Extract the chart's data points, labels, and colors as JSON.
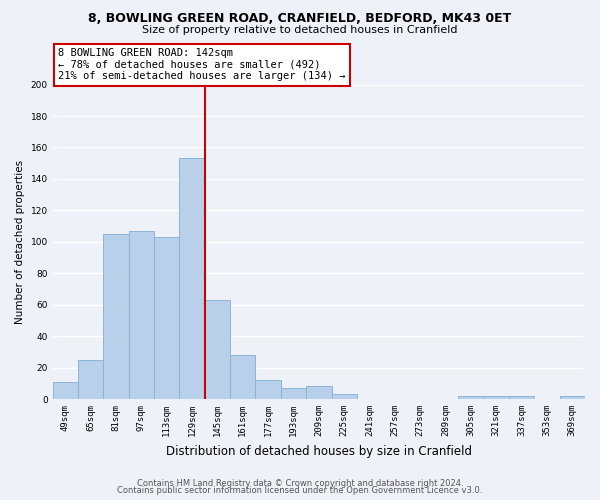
{
  "title1": "8, BOWLING GREEN ROAD, CRANFIELD, BEDFORD, MK43 0ET",
  "title2": "Size of property relative to detached houses in Cranfield",
  "xlabel": "Distribution of detached houses by size in Cranfield",
  "ylabel": "Number of detached properties",
  "bin_labels": [
    "49sqm",
    "65sqm",
    "81sqm",
    "97sqm",
    "113sqm",
    "129sqm",
    "145sqm",
    "161sqm",
    "177sqm",
    "193sqm",
    "209sqm",
    "225sqm",
    "241sqm",
    "257sqm",
    "273sqm",
    "289sqm",
    "305sqm",
    "321sqm",
    "337sqm",
    "353sqm",
    "369sqm"
  ],
  "bar_heights": [
    11,
    25,
    105,
    107,
    103,
    153,
    63,
    28,
    12,
    7,
    8,
    3,
    0,
    0,
    0,
    0,
    2,
    2,
    2,
    0,
    2
  ],
  "bar_color": "#b8d0ea",
  "bar_edge_color": "#8ab4d8",
  "vline_color": "#cc0000",
  "vline_x_index": 5.5,
  "ylim": [
    0,
    200
  ],
  "yticks": [
    0,
    20,
    40,
    60,
    80,
    100,
    120,
    140,
    160,
    180,
    200
  ],
  "annotation_text": "8 BOWLING GREEN ROAD: 142sqm\n← 78% of detached houses are smaller (492)\n21% of semi-detached houses are larger (134) →",
  "annotation_box_color": "#ffffff",
  "annotation_box_edge": "#cc0000",
  "footer1": "Contains HM Land Registry data © Crown copyright and database right 2024.",
  "footer2": "Contains public sector information licensed under the Open Government Licence v3.0.",
  "background_color": "#eef2f8",
  "grid_color": "#ffffff",
  "title1_fontsize": 9.0,
  "title2_fontsize": 8.0,
  "xlabel_fontsize": 8.5,
  "ylabel_fontsize": 7.5,
  "tick_fontsize": 6.5,
  "annotation_fontsize": 7.5,
  "footer_fontsize": 6.0
}
